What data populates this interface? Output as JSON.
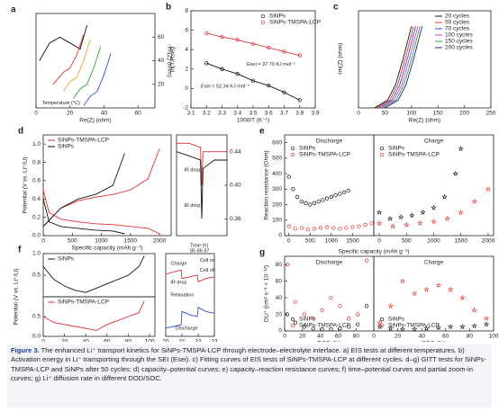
{
  "panels": [
    {
      "label": "a",
      "xlabel": "Re(Z) (ohm)",
      "ylabel": "-Im(Z) (ohm)",
      "xlim": [
        0,
        70
      ],
      "ylim": [
        0,
        80
      ],
      "xticks": [
        0,
        20,
        40,
        60
      ],
      "yticks": [
        20,
        40,
        60
      ],
      "yaxis": "right",
      "annotations": [
        {
          "text": "Temperature (°C)",
          "color": "#333"
        }
      ],
      "series": [
        {
          "color": "#111111",
          "kind": "line",
          "x": [
            2,
            8,
            14,
            20,
            26,
            30
          ],
          "values": [
            40,
            55,
            60,
            55,
            50,
            70
          ]
        },
        {
          "color": "#e03030",
          "kind": "line",
          "x": [
            10,
            16,
            20,
            24,
            28
          ],
          "values": [
            20,
            30,
            34,
            45,
            62
          ]
        },
        {
          "color": "#f0a030",
          "kind": "line",
          "x": [
            16,
            20,
            24,
            28,
            32
          ],
          "values": [
            14,
            22,
            26,
            40,
            58
          ]
        },
        {
          "color": "#30a040",
          "kind": "line",
          "x": [
            22,
            26,
            30,
            34,
            38
          ],
          "values": [
            8,
            16,
            20,
            34,
            52
          ]
        },
        {
          "color": "#3050d0",
          "kind": "line",
          "x": [
            28,
            32,
            36,
            40,
            44
          ],
          "values": [
            2,
            10,
            14,
            28,
            46
          ]
        }
      ]
    },
    {
      "label": "b",
      "xlabel": "1000/T (K⁻¹)",
      "ylabel": "ln(T/Rsei)",
      "xlim": [
        3.1,
        3.9
      ],
      "ylim": [
        -2,
        8
      ],
      "xticks": [
        3.1,
        3.2,
        3.3,
        3.4,
        3.5,
        3.6,
        3.7,
        3.8,
        3.9
      ],
      "yticks": [
        -2,
        0,
        2,
        4,
        6,
        8
      ],
      "legend": "upper right",
      "annotations": [
        {
          "text": "Esei = 37.79 KJ mol⁻¹",
          "color": "#e03030"
        },
        {
          "text": "Esei = 52.34 KJ mol⁻¹",
          "color": "#111111"
        }
      ],
      "series": [
        {
          "name": "SiNPs",
          "color": "#111111",
          "kind": "line-circle",
          "x": [
            3.2,
            3.3,
            3.4,
            3.5,
            3.6,
            3.7,
            3.8
          ],
          "values": [
            2.6,
            2.0,
            1.5,
            0.8,
            0.3,
            -0.4,
            -1.2
          ]
        },
        {
          "name": "SiNPs-TMSPA-LCP",
          "color": "#e03030",
          "kind": "line-circle",
          "x": [
            3.2,
            3.3,
            3.4,
            3.5,
            3.6,
            3.7,
            3.8
          ],
          "values": [
            5.7,
            5.3,
            5.0,
            4.6,
            4.2,
            3.8,
            3.4
          ]
        }
      ]
    },
    {
      "label": "c",
      "xlabel": "Re(Z) (ohm)",
      "ylabel": "-Im(Z) (ohm)",
      "xlim": [
        0,
        250
      ],
      "ylim": [
        0,
        250
      ],
      "xticks": [
        0,
        50,
        100,
        150,
        200,
        250
      ],
      "yticks": [],
      "legend": "upper right",
      "series": [
        {
          "name": "20 cycles",
          "color": "#111111",
          "kind": "line",
          "x": [
            30,
            55,
            70,
            85,
            100
          ],
          "values": [
            0,
            20,
            60,
            130,
            210
          ]
        },
        {
          "name": "50 cycles",
          "color": "#e03030",
          "kind": "line",
          "x": [
            34,
            59,
            74,
            89,
            104
          ],
          "values": [
            0,
            20,
            60,
            130,
            210
          ]
        },
        {
          "name": "70 cycles",
          "color": "#3050d0",
          "kind": "line",
          "x": [
            38,
            63,
            78,
            93,
            108
          ],
          "values": [
            0,
            20,
            60,
            130,
            210
          ]
        },
        {
          "name": "100 cycles",
          "color": "#d040c0",
          "kind": "line",
          "x": [
            42,
            67,
            82,
            97,
            112
          ],
          "values": [
            0,
            20,
            60,
            130,
            210
          ]
        },
        {
          "name": "150 cycles",
          "color": "#30a040",
          "kind": "line",
          "x": [
            46,
            71,
            86,
            101,
            116
          ],
          "values": [
            0,
            20,
            60,
            130,
            210
          ]
        },
        {
          "name": "200 cycles",
          "color": "#1a2a80",
          "kind": "line",
          "x": [
            50,
            75,
            90,
            105,
            120
          ],
          "values": [
            0,
            20,
            60,
            130,
            210
          ]
        }
      ]
    },
    {
      "label": "d",
      "xlabel": "Specific capacity (mAh g⁻¹)",
      "ylabel": "Potential (V vs. Li⁺/Li)",
      "xlim": [
        0,
        2200
      ],
      "ylim": [
        0,
        1.1
      ],
      "xticks": [
        0,
        500,
        1000,
        1500,
        2000
      ],
      "yticks": [
        {
          "value": 0,
          "label": "0.0"
        },
        {
          "value": 0.2,
          "label": "0.2"
        },
        {
          "value": 0.4,
          "label": "0.4"
        },
        {
          "value": 0.6,
          "label": "0.6"
        },
        {
          "value": 0.8,
          "label": "0.8"
        },
        {
          "value": 1,
          "label": "1.0"
        }
      ],
      "legend": "upper left",
      "series": [
        {
          "name": "SiNPs-TMSPA-LCP",
          "color": "#e03030",
          "kind": "line",
          "x": [
            0,
            100,
            300,
            600,
            900,
            1200,
            1500,
            1800,
            2000
          ],
          "values": [
            0.5,
            0.25,
            0.18,
            0.15,
            0.13,
            0.12,
            0.1,
            0.08,
            0.02
          ]
        },
        {
          "color": "#e03030",
          "kind": "line",
          "x": [
            0,
            300,
            600,
            900,
            1200,
            1500,
            1800,
            2000
          ],
          "values": [
            0.1,
            0.3,
            0.38,
            0.42,
            0.45,
            0.5,
            0.62,
            0.95
          ]
        },
        {
          "name": "SiNPs",
          "color": "#111111",
          "kind": "line",
          "x": [
            0,
            100,
            300,
            600,
            900,
            1200,
            1400
          ],
          "values": [
            0.4,
            0.15,
            0.1,
            0.08,
            0.06,
            0.05,
            0.02
          ]
        },
        {
          "color": "#111111",
          "kind": "line",
          "x": [
            0,
            300,
            600,
            900,
            1200,
            1400
          ],
          "values": [
            0.1,
            0.3,
            0.4,
            0.45,
            0.55,
            0.9
          ]
        }
      ]
    },
    {
      "xlim": [
        0,
        4
      ],
      "ylim": [
        0.34,
        0.46
      ],
      "xticks": [],
      "yticks": [
        0.44,
        {
          "value": 0.4,
          "label": "0.40"
        },
        0.36
      ],
      "yaxis": "right",
      "annotations": [
        {
          "text": "IR drop",
          "color": "#e03030"
        },
        {
          "text": "IR drop",
          "color": "#111111"
        }
      ],
      "series": [
        {
          "color": "#e03030",
          "kind": "line",
          "x": [
            0,
            1,
            1.9,
            2,
            2.1,
            3,
            4
          ],
          "values": [
            0.45,
            0.45,
            0.445,
            0.4,
            0.44,
            0.44,
            0.44
          ]
        },
        {
          "color": "#111111",
          "kind": "line",
          "x": [
            0,
            1,
            1.9,
            2,
            2.1,
            3,
            4
          ],
          "values": [
            0.44,
            0.435,
            0.43,
            0.36,
            0.42,
            0.43,
            0.43
          ]
        }
      ]
    },
    {
      "label": "e",
      "title": "Discharge",
      "xlabel": "Specific capacity (mAh g⁻¹)",
      "ylabel": "Reaction resistance (Ohm)",
      "xlim": [
        -100,
        2000
      ],
      "ylim": [
        0,
        650
      ],
      "xticks": [
        0,
        500,
        1000,
        1500
      ],
      "yticks": [
        0,
        100,
        200,
        300,
        400,
        500,
        600
      ],
      "legend": "upper left",
      "series": [
        {
          "name": "SiNPs",
          "color": "#111111",
          "kind": "circle",
          "x": [
            0,
            100,
            200,
            300,
            400,
            500,
            600,
            700,
            800,
            900,
            1000,
            1100,
            1200,
            1300,
            1400
          ],
          "values": [
            380,
            300,
            250,
            220,
            210,
            200,
            210,
            220,
            230,
            240,
            250,
            260,
            270,
            280,
            290
          ]
        },
        {
          "name": "SiNPs-TMSPA-LCP",
          "color": "#e03030",
          "kind": "circle",
          "x": [
            0,
            150,
            300,
            450,
            600,
            750,
            900,
            1050,
            1200,
            1350,
            1500,
            1650,
            1800,
            1950
          ],
          "values": [
            60,
            45,
            50,
            40,
            45,
            50,
            55,
            50,
            45,
            50,
            55,
            60,
            70,
            80
          ]
        }
      ]
    },
    {
      "title": "Charge",
      "xlim": [
        -100,
        2100
      ],
      "ylim": [
        0,
        650
      ],
      "xticks": [
        0,
        500,
        1000,
        1500,
        2000
      ],
      "yticks": [],
      "legend": "upper left",
      "series": [
        {
          "name": "SiNPs",
          "color": "#111111",
          "kind": "star",
          "x": [
            0,
            200,
            400,
            600,
            800,
            1000,
            1200,
            1400,
            1500
          ],
          "values": [
            150,
            110,
            120,
            130,
            150,
            180,
            250,
            400,
            560
          ]
        },
        {
          "name": "SiNPs-TMSPA-LCP",
          "color": "#e03030",
          "kind": "star",
          "x": [
            0,
            250,
            500,
            750,
            1000,
            1250,
            1500,
            1750,
            2000
          ],
          "values": [
            80,
            60,
            70,
            80,
            90,
            110,
            150,
            220,
            300
          ]
        }
      ]
    },
    {
      "label": "f",
      "ylabel": "Potential (V vs. Li⁺/Li)",
      "xlim": [
        0,
        105
      ],
      "ylim": [
        0,
        1
      ],
      "xticks": [],
      "yticks": [
        {
          "value": 0.5,
          "label": "0.5"
        },
        {
          "value": 1,
          "label": "1.0"
        }
      ],
      "legend": "upper left",
      "series": [
        {
          "name": "SiNPs",
          "color": "#111111",
          "kind": "line",
          "x": [
            0,
            10,
            20,
            30,
            40,
            50,
            60,
            70,
            80,
            90,
            95
          ],
          "values": [
            0.7,
            0.4,
            0.25,
            0.15,
            0.1,
            0.2,
            0.3,
            0.4,
            0.5,
            0.7,
            0.95
          ]
        }
      ]
    },
    {
      "xlabel": "Time (h)",
      "xlim": [
        0,
        105
      ],
      "ylim": [
        0,
        1
      ],
      "xticks": [
        0,
        20,
        40,
        60,
        80,
        100
      ],
      "yticks": [
        {
          "value": 0,
          "label": "0.0"
        },
        {
          "value": 0.5,
          "label": "0.5"
        }
      ],
      "legend": "upper left",
      "series": [
        {
          "name": "SiNPs-TMSPA-LCP",
          "color": "#e03030",
          "kind": "line",
          "x": [
            0,
            10,
            20,
            30,
            40,
            50,
            60,
            70,
            80,
            90,
            95
          ],
          "values": [
            0.5,
            0.35,
            0.3,
            0.25,
            0.2,
            0.15,
            0.3,
            0.4,
            0.5,
            0.6,
            0.9
          ]
        }
      ]
    },
    {
      "xlabel": "Time (h)",
      "xlim": [
        20,
        23
      ],
      "ylim": [
        0,
        1
      ],
      "xticks": [
        20,
        21,
        22,
        23
      ],
      "yticks": [],
      "annotations": [
        {
          "text": "Time (h)",
          "color": "#e03030"
        },
        {
          "text": "85   86   87",
          "color": "#e03030"
        },
        {
          "text": "Charge",
          "color": "#e03030"
        },
        {
          "text": "Cell on",
          "color": "#111111"
        },
        {
          "text": "Cell off",
          "color": "#111111"
        },
        {
          "text": "IR drop",
          "color": "#111111"
        },
        {
          "text": "Relaxation",
          "color": "#111111"
        },
        {
          "text": "Discharge",
          "color": "#3050d0"
        }
      ],
      "series": [
        {
          "color": "#e03030",
          "kind": "line",
          "x": [
            20,
            20.5,
            20.95,
            21,
            21.5,
            21.95,
            22,
            22.5,
            23
          ],
          "values": [
            0.75,
            0.78,
            0.8,
            0.7,
            0.72,
            0.74,
            0.66,
            0.7,
            0.72
          ]
        },
        {
          "color": "#3050d0",
          "kind": "line",
          "x": [
            20,
            20.5,
            20.95,
            21,
            21.5,
            21.95,
            22,
            22.5,
            23
          ],
          "values": [
            0.1,
            0.12,
            0.14,
            0.3,
            0.26,
            0.24,
            0.35,
            0.3,
            0.28
          ]
        }
      ]
    },
    {
      "label": "g",
      "title": "Discharge",
      "xlabel": "DOD (%)",
      "ylabel": "DLi⁺ (cm² s⁻¹ × 10⁻¹²)",
      "xlim": [
        0,
        100
      ],
      "ylim": [
        0,
        90
      ],
      "xticks": [
        0,
        20,
        40,
        60,
        80
      ],
      "yticks": [
        0,
        20,
        40,
        60,
        80
      ],
      "legend": "lower left",
      "series": [
        {
          "name": "SiNPs",
          "color": "#111111",
          "kind": "circle",
          "x": [
            3,
            12,
            22,
            32,
            42,
            52,
            62,
            72,
            82,
            92
          ],
          "values": [
            20,
            10,
            5,
            3,
            2,
            2,
            3,
            5,
            8,
            30
          ]
        },
        {
          "name": "SiNPs-TMSPA-LCP",
          "color": "#e03030",
          "kind": "circle",
          "x": [
            3,
            12,
            22,
            32,
            42,
            52,
            62,
            72,
            82,
            92
          ],
          "values": [
            80,
            35,
            20,
            15,
            25,
            40,
            30,
            15,
            20,
            85
          ]
        }
      ]
    },
    {
      "title": "Charge",
      "xlabel": "SOC (%)",
      "xlim": [
        0,
        100
      ],
      "ylim": [
        0,
        90
      ],
      "xticks": [
        0,
        20,
        40,
        60,
        80,
        100
      ],
      "yticks": [],
      "legend": "lower left",
      "series": [
        {
          "name": "SiNPs",
          "color": "#111111",
          "kind": "star",
          "x": [
            5,
            14,
            24,
            34,
            44,
            54,
            64,
            74,
            84,
            94
          ],
          "values": [
            5,
            3,
            2,
            2,
            3,
            4,
            5,
            5,
            6,
            8
          ]
        },
        {
          "name": "SiNPs-TMSPA-LCP",
          "color": "#e03030",
          "kind": "star",
          "x": [
            5,
            14,
            24,
            34,
            44,
            54,
            64,
            74,
            84,
            94
          ],
          "values": [
            10,
            30,
            60,
            45,
            50,
            55,
            50,
            40,
            25,
            15
          ]
        }
      ]
    }
  ],
  "caption": {
    "label": "Figure 3.",
    "text": "The enhanced Li⁺ transport kinetics for SiNPs-TMSPA-LCP through electrode–electrolyte interface. a) EIS tests at different temperatures. b) Activation energy in Li⁺ transporting through the SEI (Esei). c) Fitting curves of EIS tests of SiNPs-TMSPA-LCP at different cycles. d–g) GITT tests for SiNPs-TMSPA-LCP and SiNPs after 50 cycles: d) capacity–potential curves; e) capacity–reaction resistance curves; f) time–potential curves and partial zoom-in curves; g) Li⁺ diffusion rate in different DOD/SOC."
  }
}
